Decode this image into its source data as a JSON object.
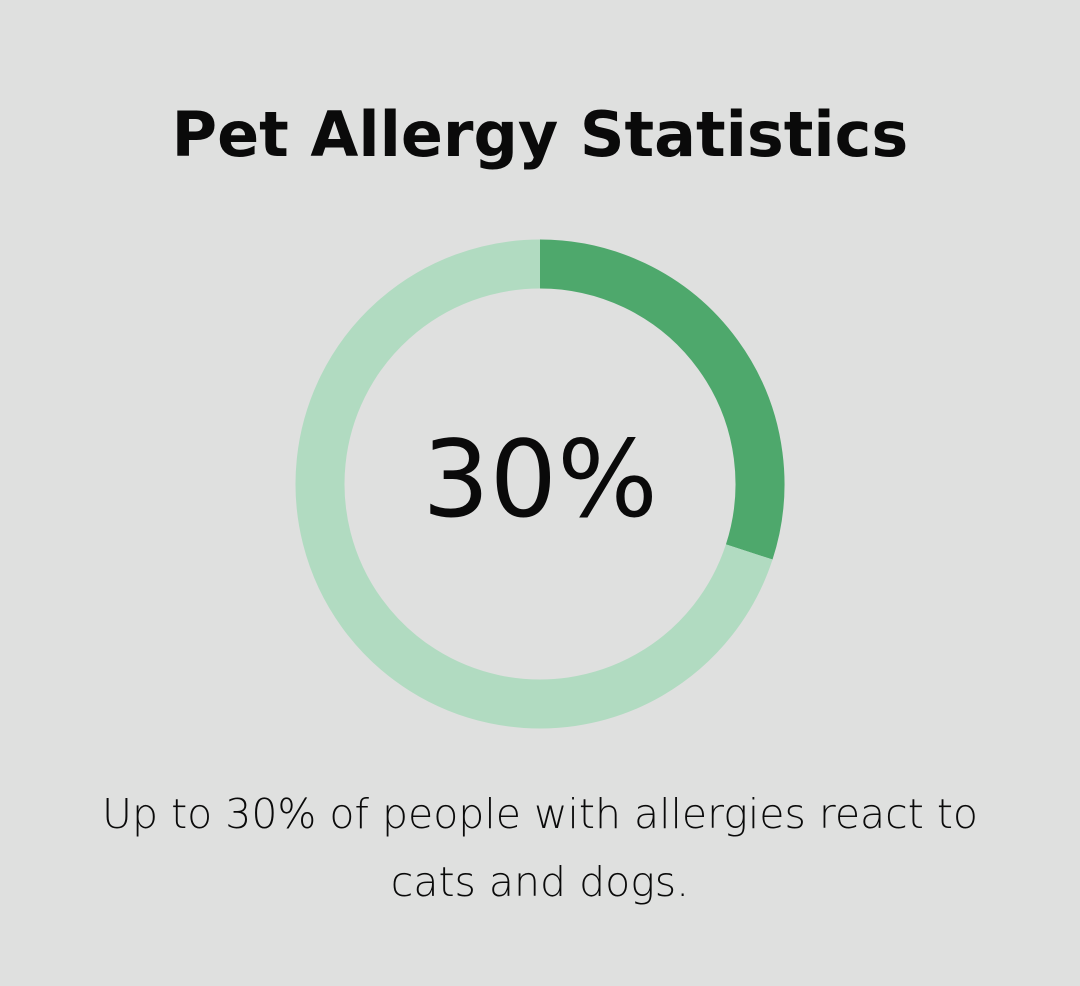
{
  "chart_data": {
    "type": "pie",
    "variant": "donut",
    "title": "Pet Allergy Statistics",
    "center_label": "30%",
    "caption": "Up to 30% of people with allergies react to cats and dogs.",
    "values": [
      30,
      70
    ],
    "colors": [
      "#4ea86c",
      "#b1dbc1"
    ]
  },
  "colors": {
    "background": "#dfe0df"
  }
}
